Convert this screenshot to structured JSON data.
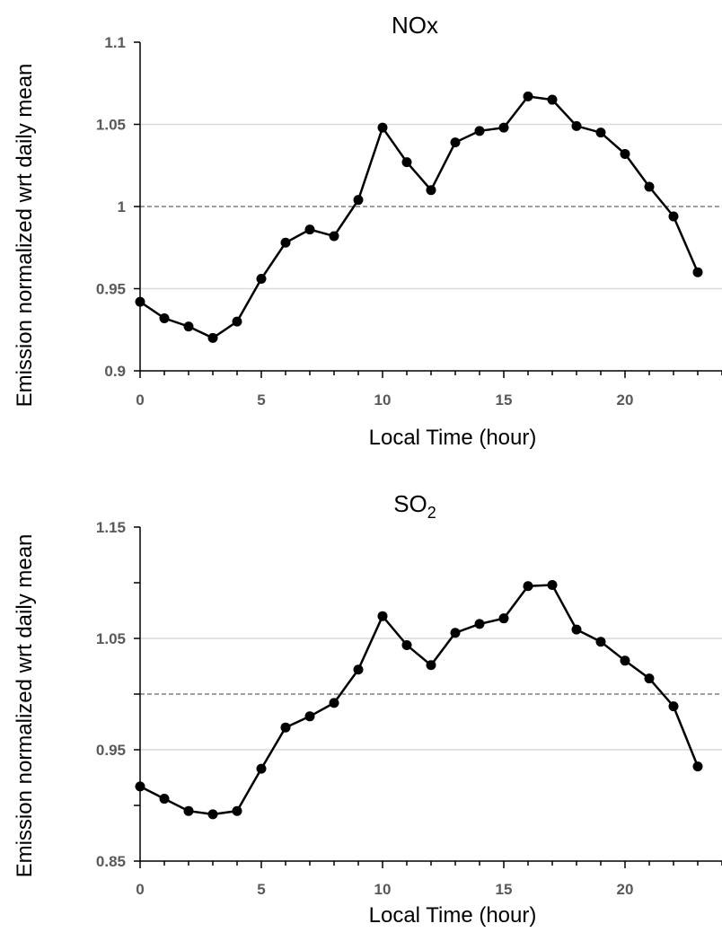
{
  "chart_data": [
    {
      "type": "line",
      "title": "NOx",
      "title_sub": "",
      "xlabel": "Local Time (hour)",
      "ylabel": "Emission normalized wrt daily mean",
      "xlim": [
        0,
        24
      ],
      "ylim": [
        0.9,
        1.1
      ],
      "xticks": [
        0,
        5,
        10,
        15,
        20
      ],
      "yticks": [
        0.9,
        0.95,
        1,
        1.05,
        1.1
      ],
      "ytick_labels": [
        "0.9",
        "0.95",
        "1",
        "1.05",
        "1.1"
      ],
      "gridlines": [
        0.95,
        1.05
      ],
      "reference_line": 1,
      "grid": true,
      "x": [
        0,
        1,
        2,
        3,
        4,
        5,
        6,
        7,
        8,
        9,
        10,
        11,
        12,
        13,
        14,
        15,
        16,
        17,
        18,
        19,
        20,
        21,
        22,
        23
      ],
      "values": [
        0.942,
        0.932,
        0.927,
        0.92,
        0.93,
        0.956,
        0.978,
        0.986,
        0.982,
        1.004,
        1.048,
        1.027,
        1.01,
        1.039,
        1.046,
        1.048,
        1.067,
        1.065,
        1.049,
        1.045,
        1.032,
        1.012,
        0.994,
        0.96
      ],
      "colors": {
        "line": "#000000",
        "marker": "#000000",
        "grid": "#d9d9d9",
        "reference": "#7f7f7f"
      }
    },
    {
      "type": "line",
      "title": "SO",
      "title_sub": "2",
      "xlabel": "Local Time (hour)",
      "ylabel": "Emission normalized wrt daily mean",
      "xlim": [
        0,
        24
      ],
      "ylim": [
        0.85,
        1.15
      ],
      "xticks": [
        0,
        5,
        10,
        15,
        20
      ],
      "yticks": [
        0.85,
        0.95,
        1.05,
        1.15
      ],
      "ytick_labels": [
        "0.85",
        "0.95",
        "1.05",
        "1.15"
      ],
      "minor_yticks": [
        0.9,
        1.0,
        1.1
      ],
      "gridlines": [
        0.95,
        1.05
      ],
      "reference_line": 1,
      "grid": true,
      "x": [
        0,
        1,
        2,
        3,
        4,
        5,
        6,
        7,
        8,
        9,
        10,
        11,
        12,
        13,
        14,
        15,
        16,
        17,
        18,
        19,
        20,
        21,
        22,
        23
      ],
      "values": [
        0.917,
        0.906,
        0.895,
        0.892,
        0.895,
        0.933,
        0.97,
        0.98,
        0.992,
        1.022,
        1.07,
        1.044,
        1.026,
        1.055,
        1.063,
        1.068,
        1.097,
        1.098,
        1.058,
        1.047,
        1.03,
        1.014,
        0.989,
        0.935
      ],
      "colors": {
        "line": "#000000",
        "marker": "#000000",
        "grid": "#d9d9d9",
        "reference": "#7f7f7f"
      }
    }
  ]
}
